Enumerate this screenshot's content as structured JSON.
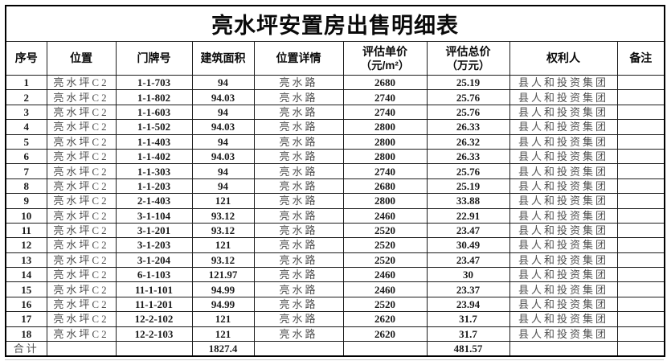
{
  "title": "亮水坪安置房出售明细表",
  "columns": [
    {
      "key": "index",
      "label": "序号"
    },
    {
      "key": "location",
      "label": "位置"
    },
    {
      "key": "house-number",
      "label": "门牌号"
    },
    {
      "key": "building-area",
      "label": "建筑面积"
    },
    {
      "key": "location-detail",
      "label": "位置详情"
    },
    {
      "key": "unit-price",
      "label": "评估单价",
      "sub": "（元/m²）"
    },
    {
      "key": "total-price",
      "label": "评估总价",
      "sub": "（万元）"
    },
    {
      "key": "owner",
      "label": "权利人"
    },
    {
      "key": "remark",
      "label": "备注"
    }
  ],
  "rows": [
    [
      "1",
      "亮水坪C2",
      "1-1-703",
      "94",
      "亮水路",
      "2680",
      "25.19",
      "县人和投资集团",
      ""
    ],
    [
      "2",
      "亮水坪C2",
      "1-1-802",
      "94.03",
      "亮水路",
      "2740",
      "25.76",
      "县人和投资集团",
      ""
    ],
    [
      "3",
      "亮水坪C2",
      "1-1-603",
      "94",
      "亮水路",
      "2740",
      "25.76",
      "县人和投资集团",
      ""
    ],
    [
      "4",
      "亮水坪C2",
      "1-1-502",
      "94.03",
      "亮水路",
      "2800",
      "26.33",
      "县人和投资集团",
      ""
    ],
    [
      "5",
      "亮水坪C2",
      "1-1-403",
      "94",
      "亮水路",
      "2800",
      "26.32",
      "县人和投资集团",
      ""
    ],
    [
      "6",
      "亮水坪C2",
      "1-1-402",
      "94.03",
      "亮水路",
      "2800",
      "26.33",
      "县人和投资集团",
      ""
    ],
    [
      "7",
      "亮水坪C2",
      "1-1-303",
      "94",
      "亮水路",
      "2740",
      "25.76",
      "县人和投资集团",
      ""
    ],
    [
      "8",
      "亮水坪C2",
      "1-1-203",
      "94",
      "亮水路",
      "2680",
      "25.19",
      "县人和投资集团",
      ""
    ],
    [
      "9",
      "亮水坪C2",
      "2-1-403",
      "121",
      "亮水路",
      "2800",
      "33.88",
      "县人和投资集团",
      ""
    ],
    [
      "10",
      "亮水坪C2",
      "3-1-104",
      "93.12",
      "亮水路",
      "2460",
      "22.91",
      "县人和投资集团",
      ""
    ],
    [
      "11",
      "亮水坪C2",
      "3-1-201",
      "93.12",
      "亮水路",
      "2520",
      "23.47",
      "县人和投资集团",
      ""
    ],
    [
      "12",
      "亮水坪C2",
      "3-1-203",
      "121",
      "亮水路",
      "2520",
      "30.49",
      "县人和投资集团",
      ""
    ],
    [
      "13",
      "亮水坪C2",
      "3-1-204",
      "93.12",
      "亮水路",
      "2520",
      "23.47",
      "县人和投资集团",
      ""
    ],
    [
      "14",
      "亮水坪C2",
      "6-1-103",
      "121.97",
      "亮水路",
      "2460",
      "30",
      "县人和投资集团",
      ""
    ],
    [
      "15",
      "亮水坪C2",
      "11-1-101",
      "94.99",
      "亮水路",
      "2460",
      "23.37",
      "县人和投资集团",
      ""
    ],
    [
      "16",
      "亮水坪C2",
      "11-1-201",
      "94.99",
      "亮水路",
      "2520",
      "23.94",
      "县人和投资集团",
      ""
    ],
    [
      "17",
      "亮水坪C2",
      "12-2-102",
      "121",
      "亮水路",
      "2620",
      "31.7",
      "县人和投资集团",
      ""
    ],
    [
      "18",
      "亮水坪C2",
      "12-2-103",
      "121",
      "亮水路",
      "2620",
      "31.7",
      "县人和投资集团",
      ""
    ]
  ],
  "total": {
    "label": "合计",
    "area_total": "1827.4",
    "price_total": "481.57"
  }
}
